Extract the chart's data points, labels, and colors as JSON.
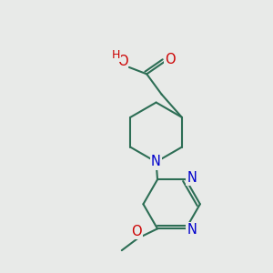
{
  "background_color": "#e8eae8",
  "bond_color": "#2d6e55",
  "bond_width": 1.5,
  "atom_colors": {
    "N": "#0000cc",
    "O": "#cc0000",
    "C": "#2d6e55"
  },
  "font_size": 10.5,
  "figsize": [
    3.0,
    3.0
  ],
  "dpi": 100
}
